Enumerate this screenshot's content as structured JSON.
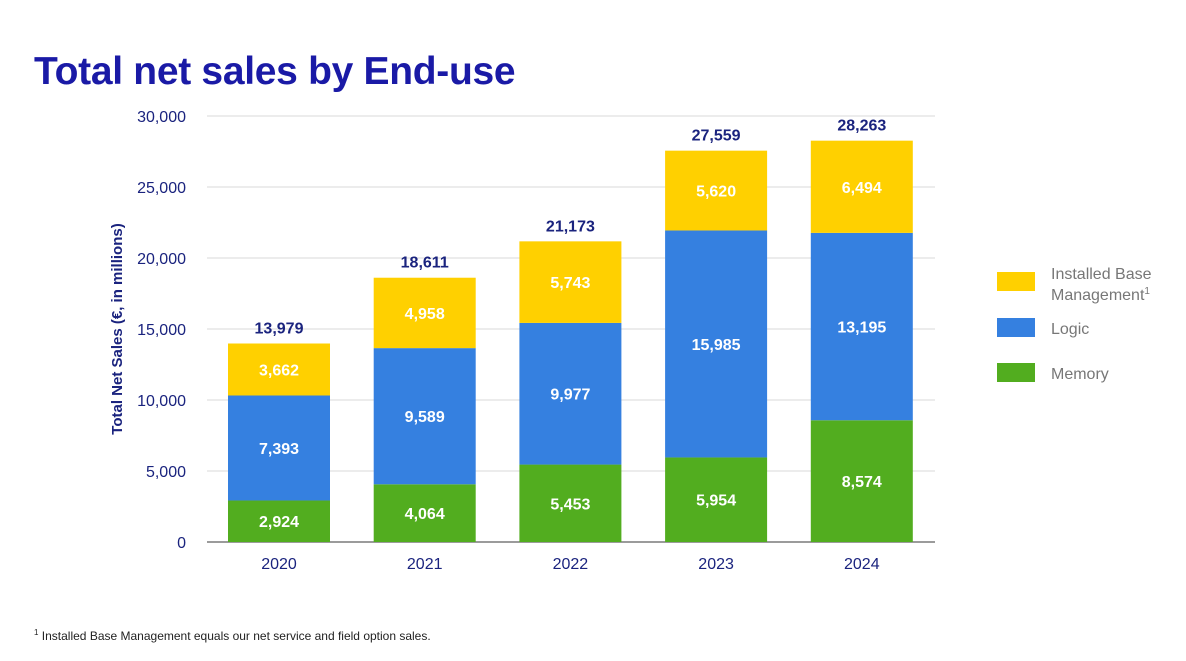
{
  "title": "Total net sales by End-use",
  "footnote": {
    "marker": "1",
    "text": " Installed Base Management equals our net service and field option sales."
  },
  "colors": {
    "memory": "#52ad1f",
    "logic": "#3580e0",
    "installed_base": "#ffd000",
    "text_dark": "#1a237e",
    "grid": "#d9d9d9"
  },
  "chart_data": {
    "type": "bar",
    "stacked": true,
    "title": "Total net sales by End-use",
    "xlabel": "",
    "ylabel": "Total Net Sales (€, in millions)",
    "ylim": [
      0,
      30000
    ],
    "yticks": [
      0,
      5000,
      10000,
      15000,
      20000,
      25000,
      30000
    ],
    "ytick_labels": [
      "0",
      "5,000",
      "10,000",
      "15,000",
      "20,000",
      "25,000",
      "30,000"
    ],
    "grid": true,
    "legend_position": "right",
    "categories": [
      "2020",
      "2021",
      "2022",
      "2023",
      "2024"
    ],
    "series": [
      {
        "name": "Memory",
        "color": "#52ad1f",
        "values": [
          2924,
          4064,
          5453,
          5954,
          8574
        ],
        "labels": [
          "2,924",
          "4,064",
          "5,453",
          "5,954",
          "8,574"
        ]
      },
      {
        "name": "Logic",
        "color": "#3580e0",
        "values": [
          7393,
          9589,
          9977,
          15985,
          13195
        ],
        "labels": [
          "7,393",
          "9,589",
          "9,977",
          "15,985",
          "13,195"
        ]
      },
      {
        "name": "Installed Base Management",
        "name_lines": [
          "Installed Base",
          "Management"
        ],
        "name_superscript": "1",
        "color": "#ffd000",
        "values": [
          3662,
          4958,
          5743,
          5620,
          6494
        ],
        "labels": [
          "3,662",
          "4,958",
          "5,743",
          "5,620",
          "6,494"
        ]
      }
    ],
    "totals": [
      13979,
      18611,
      21173,
      27559,
      28263
    ],
    "total_labels": [
      "13,979",
      "18,611",
      "21,173",
      "27,559",
      "28,263"
    ],
    "legend_order": [
      "Installed Base Management",
      "Logic",
      "Memory"
    ]
  }
}
